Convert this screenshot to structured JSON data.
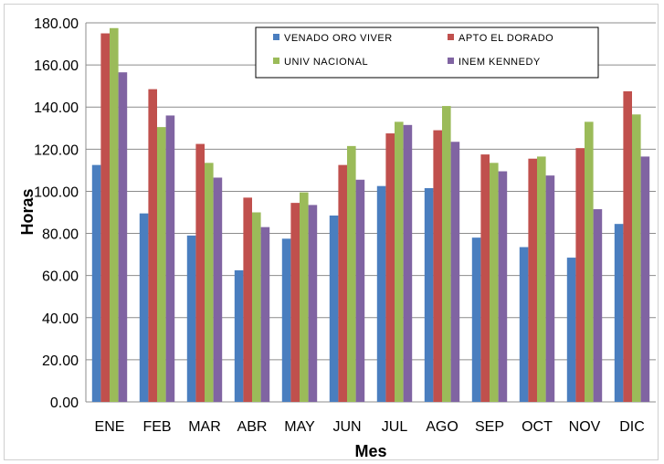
{
  "chart_data": {
    "type": "bar",
    "xlabel": "Mes",
    "ylabel": "Horas",
    "ylim": [
      0,
      180
    ],
    "yticks": [
      "0.00",
      "20.00",
      "40.00",
      "60.00",
      "80.00",
      "100.00",
      "120.00",
      "140.00",
      "160.00",
      "180.00"
    ],
    "categories": [
      "ENE",
      "FEB",
      "MAR",
      "ABR",
      "MAY",
      "JUN",
      "JUL",
      "AGO",
      "SEP",
      "OCT",
      "NOV",
      "DIC"
    ],
    "grid": true,
    "legend_position": "top-right",
    "series": [
      {
        "name": "VENADO ORO VIVER",
        "color": "#4a7ebf",
        "values": [
          112.5,
          89.5,
          79.0,
          62.5,
          77.5,
          88.5,
          102.5,
          101.5,
          78.0,
          73.5,
          68.5,
          84.5
        ]
      },
      {
        "name": "APTO EL DORADO",
        "color": "#c0504d",
        "values": [
          175.0,
          148.5,
          122.5,
          97.0,
          94.5,
          112.5,
          127.5,
          129.0,
          117.5,
          115.5,
          120.5,
          147.5
        ]
      },
      {
        "name": "UNIV NACIONAL",
        "color": "#9bbb59",
        "values": [
          177.5,
          130.5,
          113.5,
          90.0,
          99.5,
          121.5,
          133.0,
          140.5,
          113.5,
          116.5,
          133.0,
          136.5
        ]
      },
      {
        "name": "INEM KENNEDY",
        "color": "#8064a2",
        "values": [
          156.5,
          136.0,
          106.5,
          83.0,
          93.5,
          105.5,
          131.5,
          123.5,
          109.5,
          107.5,
          91.5,
          116.5
        ]
      }
    ]
  }
}
